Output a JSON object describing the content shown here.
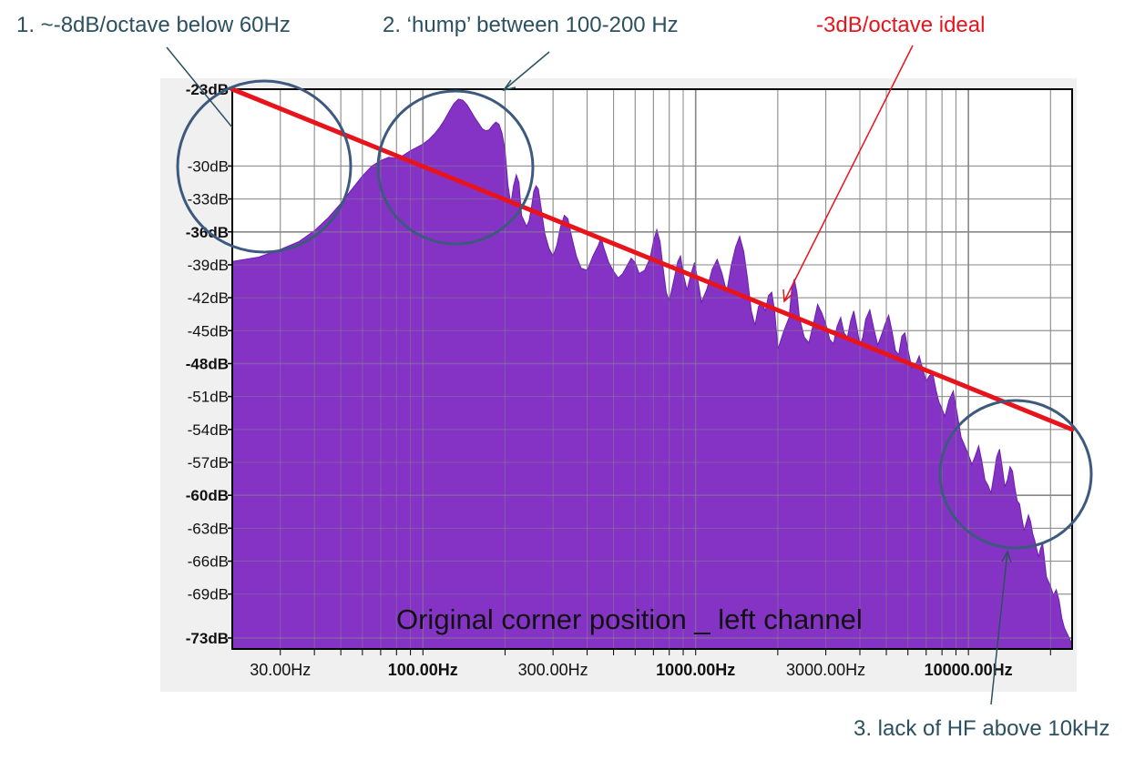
{
  "colors": {
    "spectrum_fill": "#8533c5",
    "spectrum_edge": "#6a1fae",
    "ideal_line": "#e8141c",
    "annotation_text": "#2b5060",
    "annotation_red": "#e8141c",
    "circle": "#3d5a7e",
    "grid": "#8a8a8a",
    "frame_bg": "#f0f0f0"
  },
  "annotations": {
    "note1": "1. ~-8dB/octave below 60Hz",
    "note2": "2. ‘hump’ between 100-200 Hz",
    "note3": "3. lack of HF above 10kHz",
    "ideal_label": "-3dB/octave ideal"
  },
  "chart_data": {
    "type": "area",
    "title": "Original corner position _ left channel",
    "xlabel": "",
    "ylabel": "",
    "x_scale": "log",
    "xlim": [
      20,
      24000
    ],
    "ylim": [
      -74,
      -23
    ],
    "grid": true,
    "y_ticks": [
      {
        "value": -23,
        "label": "-23dB",
        "major": true
      },
      {
        "value": -30,
        "label": "-30dB",
        "major": false
      },
      {
        "value": -33,
        "label": "-33dB",
        "major": false
      },
      {
        "value": -36,
        "label": "-36dB",
        "major": true
      },
      {
        "value": -39,
        "label": "-39dB",
        "major": false
      },
      {
        "value": -42,
        "label": "-42dB",
        "major": false
      },
      {
        "value": -45,
        "label": "-45dB",
        "major": false
      },
      {
        "value": -48,
        "label": "-48dB",
        "major": true
      },
      {
        "value": -51,
        "label": "-51dB",
        "major": false
      },
      {
        "value": -54,
        "label": "-54dB",
        "major": false
      },
      {
        "value": -57,
        "label": "-57dB",
        "major": false
      },
      {
        "value": -60,
        "label": "-60dB",
        "major": true
      },
      {
        "value": -63,
        "label": "-63dB",
        "major": false
      },
      {
        "value": -66,
        "label": "-66dB",
        "major": false
      },
      {
        "value": -69,
        "label": "-69dB",
        "major": false
      },
      {
        "value": -73,
        "label": "-73dB",
        "major": true
      }
    ],
    "x_tick_labels": [
      {
        "value": 30,
        "label": "30.00Hz",
        "major": false
      },
      {
        "value": 100,
        "label": "100.00Hz",
        "major": true
      },
      {
        "value": 300,
        "label": "300.00Hz",
        "major": false
      },
      {
        "value": 1000,
        "label": "1000.00Hz",
        "major": true
      },
      {
        "value": 3000,
        "label": "3000.00Hz",
        "major": false
      },
      {
        "value": 10000,
        "label": "10000.00Hz",
        "major": true
      }
    ],
    "x_gridlines": [
      30,
      40,
      50,
      60,
      70,
      80,
      90,
      100,
      200,
      300,
      400,
      500,
      600,
      700,
      800,
      900,
      1000,
      2000,
      3000,
      4000,
      5000,
      6000,
      7000,
      8000,
      9000,
      10000,
      20000
    ],
    "series": [
      {
        "values": [
          [
            20,
            -38.7
          ],
          [
            25,
            -38.3
          ],
          [
            30,
            -37.6
          ],
          [
            35,
            -36.9
          ],
          [
            40,
            -35.9
          ],
          [
            45,
            -34.7
          ],
          [
            50,
            -33.4
          ],
          [
            55,
            -32.1
          ],
          [
            60,
            -30.9
          ],
          [
            65,
            -30
          ],
          [
            70,
            -29.5
          ],
          [
            75,
            -29.2
          ],
          [
            80,
            -29.3
          ],
          [
            85,
            -29
          ],
          [
            90,
            -28.6
          ],
          [
            95,
            -28.3
          ],
          [
            100,
            -28
          ],
          [
            105,
            -27.6
          ],
          [
            110,
            -27.1
          ],
          [
            115,
            -26.5
          ],
          [
            120,
            -25.8
          ],
          [
            125,
            -25
          ],
          [
            130,
            -24.3
          ],
          [
            135,
            -23.9
          ],
          [
            140,
            -24
          ],
          [
            145,
            -24.4
          ],
          [
            150,
            -25
          ],
          [
            155,
            -25.6
          ],
          [
            160,
            -26.1
          ],
          [
            165,
            -26.6
          ],
          [
            170,
            -26.8
          ],
          [
            175,
            -26.7
          ],
          [
            180,
            -26.3
          ],
          [
            185,
            -26
          ],
          [
            190,
            -26.2
          ],
          [
            195,
            -27
          ],
          [
            200,
            -28.5
          ],
          [
            205,
            -31.7
          ],
          [
            210,
            -33.5
          ],
          [
            215,
            -31.8
          ],
          [
            220,
            -30.8
          ],
          [
            225,
            -31.5
          ],
          [
            230,
            -34.5
          ],
          [
            240,
            -35.5
          ],
          [
            245,
            -35
          ],
          [
            250,
            -33.8
          ],
          [
            255,
            -32.3
          ],
          [
            260,
            -31.8
          ],
          [
            265,
            -32.1
          ],
          [
            270,
            -33.5
          ],
          [
            280,
            -36.2
          ],
          [
            290,
            -37.5
          ],
          [
            300,
            -38.2
          ],
          [
            310,
            -37.2
          ],
          [
            320,
            -35.5
          ],
          [
            330,
            -34.5
          ],
          [
            340,
            -34.8
          ],
          [
            350,
            -36.3
          ],
          [
            365,
            -38.2
          ],
          [
            380,
            -39.3
          ],
          [
            400,
            -39.5
          ],
          [
            420,
            -38.2
          ],
          [
            440,
            -37.2
          ],
          [
            450,
            -36.5
          ],
          [
            460,
            -37.4
          ],
          [
            480,
            -38.8
          ],
          [
            500,
            -39.6
          ],
          [
            520,
            -40.2
          ],
          [
            540,
            -39.8
          ],
          [
            560,
            -39.1
          ],
          [
            580,
            -38.4
          ],
          [
            600,
            -38.8
          ],
          [
            620,
            -39.8
          ],
          [
            650,
            -39.5
          ],
          [
            680,
            -38.4
          ],
          [
            700,
            -36.9
          ],
          [
            720,
            -35.8
          ],
          [
            740,
            -36.9
          ],
          [
            760,
            -39.3
          ],
          [
            780,
            -41.5
          ],
          [
            800,
            -42.3
          ],
          [
            830,
            -40.5
          ],
          [
            860,
            -38.7
          ],
          [
            880,
            -38.2
          ],
          [
            900,
            -39.8
          ],
          [
            930,
            -41.3
          ],
          [
            960,
            -39.9
          ],
          [
            990,
            -38.8
          ],
          [
            1020,
            -40.5
          ],
          [
            1050,
            -42.4
          ],
          [
            1100,
            -41.2
          ],
          [
            1150,
            -39.4
          ],
          [
            1200,
            -38.5
          ],
          [
            1250,
            -39.8
          ],
          [
            1300,
            -41.5
          ],
          [
            1350,
            -39.1
          ],
          [
            1400,
            -37.4
          ],
          [
            1450,
            -36.4
          ],
          [
            1500,
            -37.8
          ],
          [
            1550,
            -40.3
          ],
          [
            1600,
            -43.2
          ],
          [
            1650,
            -44.5
          ],
          [
            1700,
            -42.8
          ],
          [
            1750,
            -42.5
          ],
          [
            1800,
            -43.2
          ],
          [
            1850,
            -41.8
          ],
          [
            1900,
            -41.5
          ],
          [
            1950,
            -43.3
          ],
          [
            2000,
            -46.7
          ],
          [
            2100,
            -45.1
          ],
          [
            2200,
            -43.8
          ],
          [
            2250,
            -41.2
          ],
          [
            2300,
            -40.3
          ],
          [
            2350,
            -41.5
          ],
          [
            2400,
            -43.8
          ],
          [
            2500,
            -45.6
          ],
          [
            2600,
            -46.1
          ],
          [
            2700,
            -44.4
          ],
          [
            2800,
            -42.6
          ],
          [
            2900,
            -43.4
          ],
          [
            3000,
            -44.4
          ],
          [
            3100,
            -45.8
          ],
          [
            3200,
            -46.2
          ],
          [
            3300,
            -44.6
          ],
          [
            3400,
            -43.8
          ],
          [
            3500,
            -45.2
          ],
          [
            3600,
            -45.6
          ],
          [
            3700,
            -44.1
          ],
          [
            3800,
            -43.2
          ],
          [
            3900,
            -44.7
          ],
          [
            4000,
            -46.3
          ],
          [
            4100,
            -45.6
          ],
          [
            4200,
            -44
          ],
          [
            4350,
            -43.1
          ],
          [
            4500,
            -44.8
          ],
          [
            4650,
            -46.3
          ],
          [
            4800,
            -45.4
          ],
          [
            4950,
            -44.4
          ],
          [
            5100,
            -43.6
          ],
          [
            5250,
            -45.1
          ],
          [
            5400,
            -46.8
          ],
          [
            5550,
            -47.2
          ],
          [
            5700,
            -45.5
          ],
          [
            5850,
            -45.2
          ],
          [
            6000,
            -46.7
          ],
          [
            6200,
            -48.4
          ],
          [
            6400,
            -48.1
          ],
          [
            6600,
            -47.3
          ],
          [
            6800,
            -48.5
          ],
          [
            7000,
            -49.6
          ],
          [
            7200,
            -49.1
          ],
          [
            7400,
            -48.9
          ],
          [
            7600,
            -50.4
          ],
          [
            7800,
            -51.5
          ],
          [
            8000,
            -52.1
          ],
          [
            8200,
            -52.8
          ],
          [
            8500,
            -51.3
          ],
          [
            8800,
            -50.5
          ],
          [
            9100,
            -52.6
          ],
          [
            9400,
            -54.7
          ],
          [
            9700,
            -55.5
          ],
          [
            10000,
            -56.3
          ],
          [
            10300,
            -57.2
          ],
          [
            10600,
            -56.4
          ],
          [
            10900,
            -55.5
          ],
          [
            11200,
            -56.9
          ],
          [
            11500,
            -58.6
          ],
          [
            11800,
            -59.1
          ],
          [
            12100,
            -59.8
          ],
          [
            12400,
            -58.2
          ],
          [
            12700,
            -56.5
          ],
          [
            13000,
            -55.8
          ],
          [
            13300,
            -57.4
          ],
          [
            13600,
            -59.2
          ],
          [
            13900,
            -58.6
          ],
          [
            14200,
            -57.4
          ],
          [
            14500,
            -57.8
          ],
          [
            14800,
            -59.3
          ],
          [
            15100,
            -60.5
          ],
          [
            15400,
            -60.8
          ],
          [
            15700,
            -62.1
          ],
          [
            16000,
            -63.2
          ],
          [
            16300,
            -62.5
          ],
          [
            16600,
            -61.8
          ],
          [
            16900,
            -62.4
          ],
          [
            17200,
            -63.5
          ],
          [
            17500,
            -64.1
          ],
          [
            17800,
            -64.9
          ],
          [
            18100,
            -65.6
          ],
          [
            18400,
            -64.8
          ],
          [
            18700,
            -64.4
          ],
          [
            19000,
            -65.8
          ],
          [
            19300,
            -67.4
          ],
          [
            19600,
            -67.8
          ],
          [
            20000,
            -68.3
          ],
          [
            20500,
            -69.1
          ],
          [
            21000,
            -68.6
          ],
          [
            21500,
            -69.6
          ],
          [
            22000,
            -71.2
          ],
          [
            22500,
            -72.1
          ],
          [
            23000,
            -72.6
          ],
          [
            23500,
            -73.1
          ],
          [
            24000,
            -73.6
          ]
        ]
      }
    ],
    "ideal_line": {
      "x": [
        20,
        24000
      ],
      "y": [
        -23,
        -54
      ]
    }
  }
}
